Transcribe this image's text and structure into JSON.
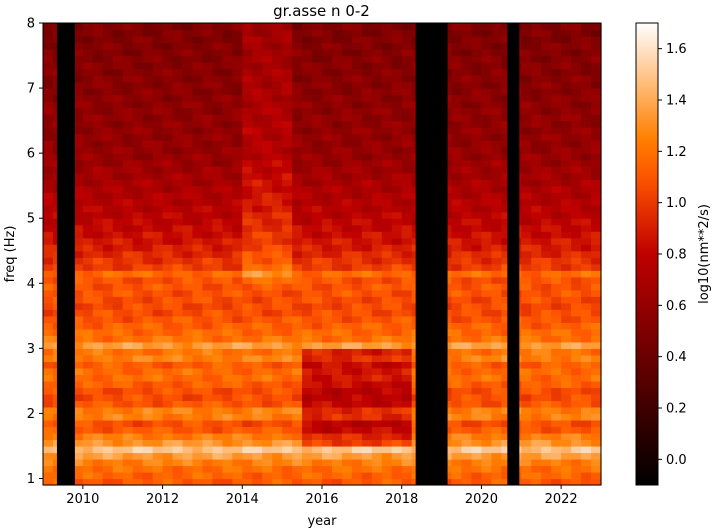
{
  "chart_data": {
    "type": "heatmap",
    "title": "gr.asse n 0-2",
    "xlabel": "year",
    "ylabel": "freq (Hz)",
    "xlim": [
      2009.0,
      2023.0
    ],
    "ylim": [
      0.9,
      8.0
    ],
    "x_ticks": [
      2010,
      2012,
      2014,
      2016,
      2018,
      2020,
      2022
    ],
    "x_tick_labels": [
      "2010",
      "2012",
      "2014",
      "2016",
      "2018",
      "2020",
      "2022"
    ],
    "y_ticks": [
      1,
      2,
      3,
      4,
      5,
      6,
      7,
      8
    ],
    "y_tick_labels": [
      "1",
      "2",
      "3",
      "4",
      "5",
      "6",
      "7",
      "8"
    ],
    "colormap": "gist_heat",
    "colorbar": {
      "label": "log10(nm**2/s)",
      "range": [
        -0.1,
        1.7
      ],
      "ticks": [
        0.0,
        0.2,
        0.4,
        0.6,
        0.8,
        1.0,
        1.2,
        1.4,
        1.6
      ],
      "tick_labels": [
        "0.0",
        "0.2",
        "0.4",
        "0.6",
        "0.8",
        "1.0",
        "1.2",
        "1.4",
        "1.6"
      ]
    },
    "data_gaps": [
      [
        2009.35,
        2009.8
      ],
      [
        2018.35,
        2019.15
      ],
      [
        2020.65,
        2020.95
      ]
    ],
    "frequency_profile": {
      "freq": [
        0.9,
        1.2,
        1.4,
        1.6,
        1.8,
        2.0,
        2.3,
        2.6,
        2.8,
        3.0,
        3.3,
        3.6,
        4.0,
        4.3,
        4.6,
        5.0,
        5.5,
        6.0,
        6.5,
        7.0,
        8.0
      ],
      "value": [
        1.1,
        1.2,
        1.4,
        1.3,
        1.05,
        1.15,
        1.05,
        1.2,
        1.1,
        1.25,
        1.15,
        1.05,
        1.1,
        1.0,
        0.88,
        0.78,
        0.7,
        0.6,
        0.58,
        0.55,
        0.5
      ]
    },
    "time_modifiers": [
      {
        "range": [
          2013.9,
          2015.2
        ],
        "freq_above": 4.0,
        "delta": 0.15,
        "note": "elevated energy"
      },
      {
        "range": [
          2015.5,
          2018.3
        ],
        "freq_range": [
          1.5,
          3.0
        ],
        "delta": -0.3,
        "note": "reduced energy"
      }
    ],
    "bright_lines_freq": [
      1.45,
      2.0,
      2.85,
      3.05,
      4.15
    ]
  }
}
